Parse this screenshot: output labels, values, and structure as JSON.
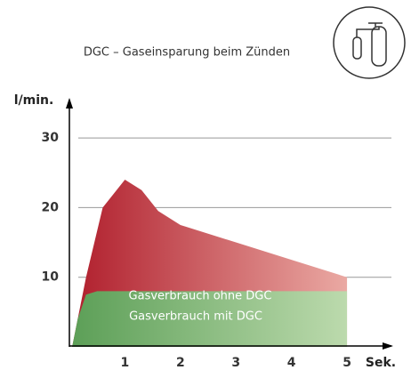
{
  "chart_data": {
    "type": "area",
    "title": "DGC – Gaseinsparung beim Zünden",
    "y_label": "l/min.",
    "x_label": "Sek.",
    "xlim": [
      0,
      5.8
    ],
    "ylim": [
      0,
      35.5
    ],
    "xticks": [
      1,
      2,
      3,
      4,
      5
    ],
    "yticks": [
      10,
      20,
      30
    ],
    "grid": true,
    "series": [
      {
        "name": "Gasverbrauch ohne DGC",
        "color": [
          "#b01e2c",
          "#eaa9a3"
        ],
        "x": [
          0.05,
          0.3,
          0.6,
          1.0,
          1.3,
          1.6,
          2,
          3,
          4,
          5
        ],
        "values": [
          0,
          10,
          20,
          24,
          22.5,
          19.5,
          17.5,
          15,
          12.5,
          10
        ]
      },
      {
        "name": "Gasverbrauch mit DGC",
        "color": [
          "#5c9f57",
          "#bcdaad"
        ],
        "x": [
          0.05,
          0.15,
          0.3,
          0.5,
          5
        ],
        "values": [
          0,
          4,
          7.5,
          8,
          8
        ]
      }
    ]
  }
}
